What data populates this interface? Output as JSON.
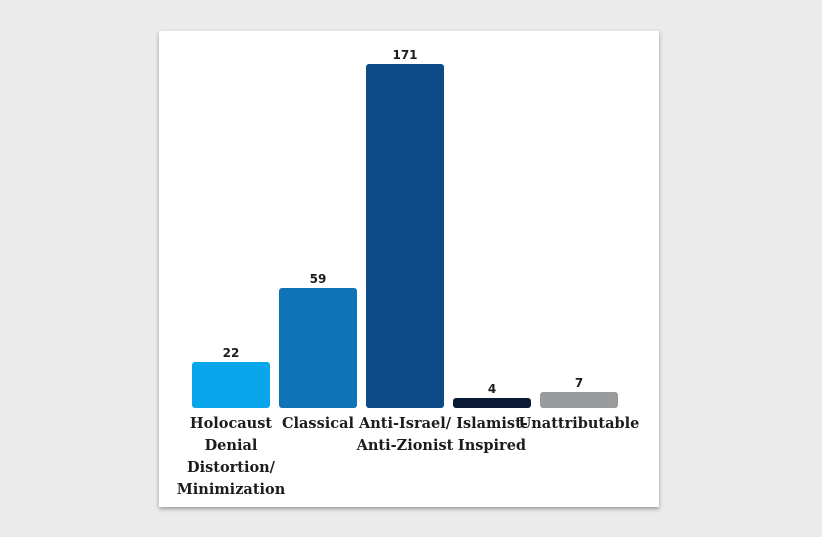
{
  "chart_data": {
    "type": "bar",
    "categories": [
      [
        "Holocaust",
        "Denial",
        "Distortion/",
        "Minimization"
      ],
      [
        "Classical"
      ],
      [
        "Anti-Israel/",
        "Anti-Zionist"
      ],
      [
        "Islamist-",
        "Inspired"
      ],
      [
        "Unattributable"
      ]
    ],
    "values": [
      22,
      59,
      171,
      4,
      7
    ],
    "data_labels": [
      "22",
      "59",
      "171",
      "4",
      "7"
    ],
    "colors": [
      "#0aa6ec",
      "#0f74b5",
      "#0c4a88",
      "#0b1a36",
      "#999b9d"
    ],
    "ylim": [
      0,
      171
    ],
    "grid": false,
    "legend": "none"
  }
}
